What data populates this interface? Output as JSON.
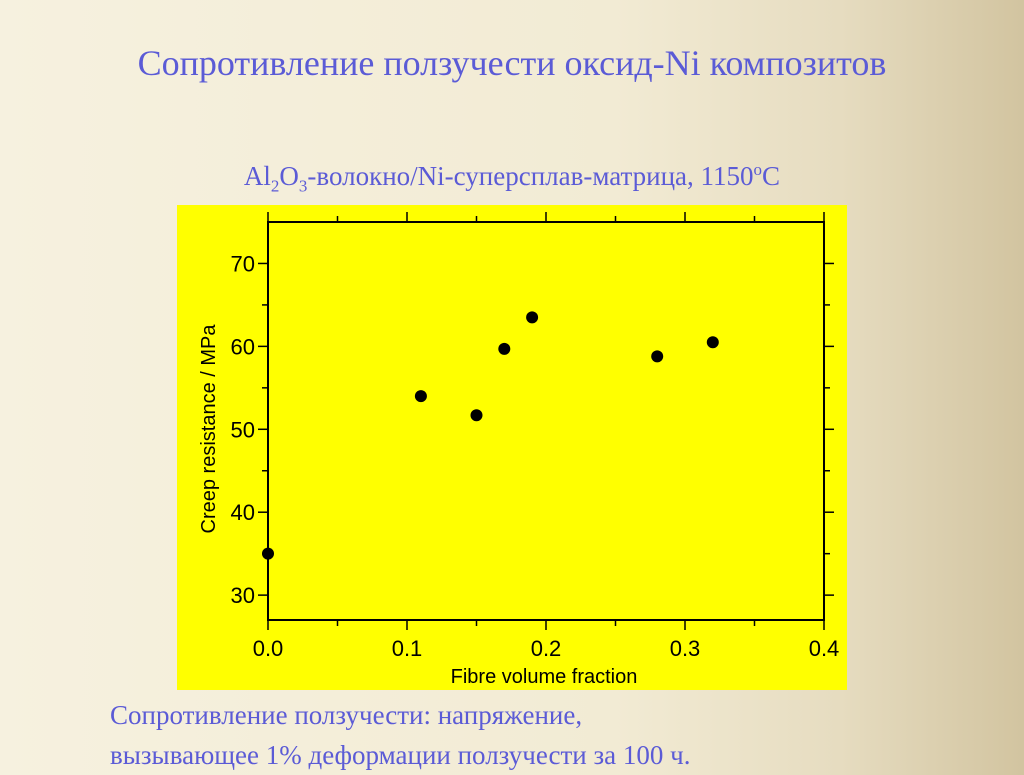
{
  "slide": {
    "title": "Сопротивление ползучести оксид-Ni композитов",
    "subtitle": {
      "part1": "Al",
      "sub1": "2",
      "part2": "O",
      "sub2": "3",
      "part3": "-волокно/Ni-суперсплав-матрица, 1150",
      "sup": "o",
      "part4": "C"
    },
    "caption_line1": "Сопротивление ползучести: напряжение,",
    "caption_line2": "вызывающее 1%  деформации ползучести за 100 ч."
  },
  "colors": {
    "text_accent": "#5b5bd6",
    "chart_background": "#ffff00",
    "marker": "#000000"
  },
  "chart_data": {
    "type": "scatter",
    "title": "",
    "xlabel": "Fibre volume fraction",
    "ylabel": "Creep resistance / MPa",
    "xlim": [
      0.0,
      0.4
    ],
    "ylim": [
      27,
      75
    ],
    "x_ticks": [
      "0.0",
      "0.1",
      "0.2",
      "0.3",
      "0.4"
    ],
    "y_ticks": [
      "30",
      "40",
      "50",
      "60",
      "70"
    ],
    "grid": false,
    "x": [
      0.0,
      0.11,
      0.15,
      0.17,
      0.19,
      0.28,
      0.32
    ],
    "y": [
      35.0,
      54.0,
      51.7,
      59.7,
      63.5,
      58.8,
      60.5
    ]
  }
}
